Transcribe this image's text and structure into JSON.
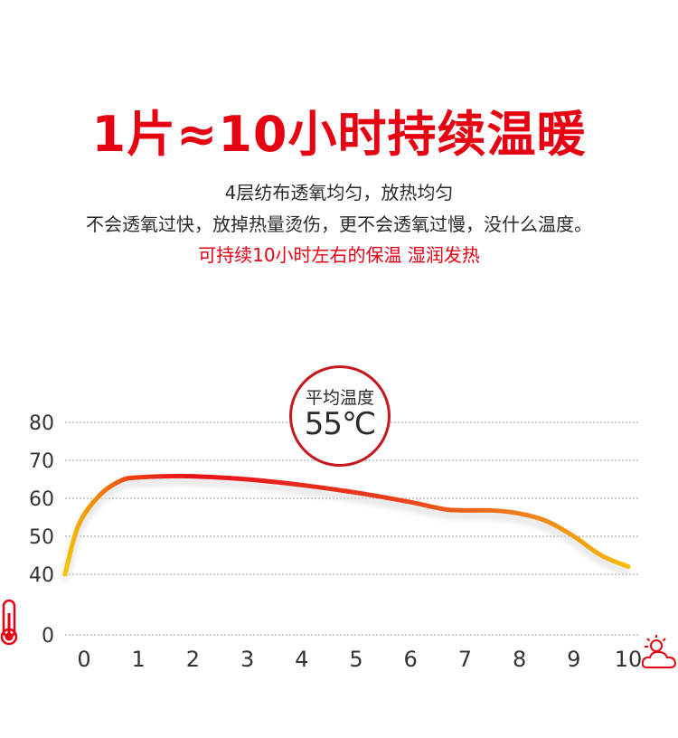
{
  "headline": "1片≈10小时持续温暖",
  "subtitle": {
    "line1": "4层纺布透氧均匀，放热均匀",
    "line2": "不会透氧过快，放掉热量烫伤，更不会透氧过慢，没什么温度。",
    "line3": "可持续10小时左右的保温 湿润发热"
  },
  "badge": {
    "label": "平均温度",
    "value": "55℃"
  },
  "icons": {
    "y_axis": "thermometer-icon",
    "x_axis": "sun-cloud-icon"
  },
  "colors": {
    "accent": "#e60012",
    "curve_start": "#f5c400",
    "curve_peak": "#e8101a",
    "curve_end": "#f5c400"
  },
  "chart_data": {
    "type": "line",
    "title": "",
    "xlabel": "",
    "ylabel": "",
    "y_ticks": [
      0,
      40,
      50,
      60,
      70,
      80
    ],
    "x_ticks": [
      0,
      1,
      2,
      3,
      4,
      5,
      6,
      7,
      8,
      9,
      10
    ],
    "grid": true,
    "x": [
      -0.35,
      -0.1,
      0.3,
      0.7,
      1,
      1.5,
      2,
      3,
      4,
      5,
      6,
      6.7,
      7.5,
      8,
      8.5,
      9,
      9.5,
      10
    ],
    "y": [
      40,
      53,
      61,
      64.8,
      65.5,
      65.8,
      65.8,
      65,
      63.5,
      61.5,
      59,
      57,
      56.8,
      56,
      54,
      50,
      45,
      42
    ]
  }
}
